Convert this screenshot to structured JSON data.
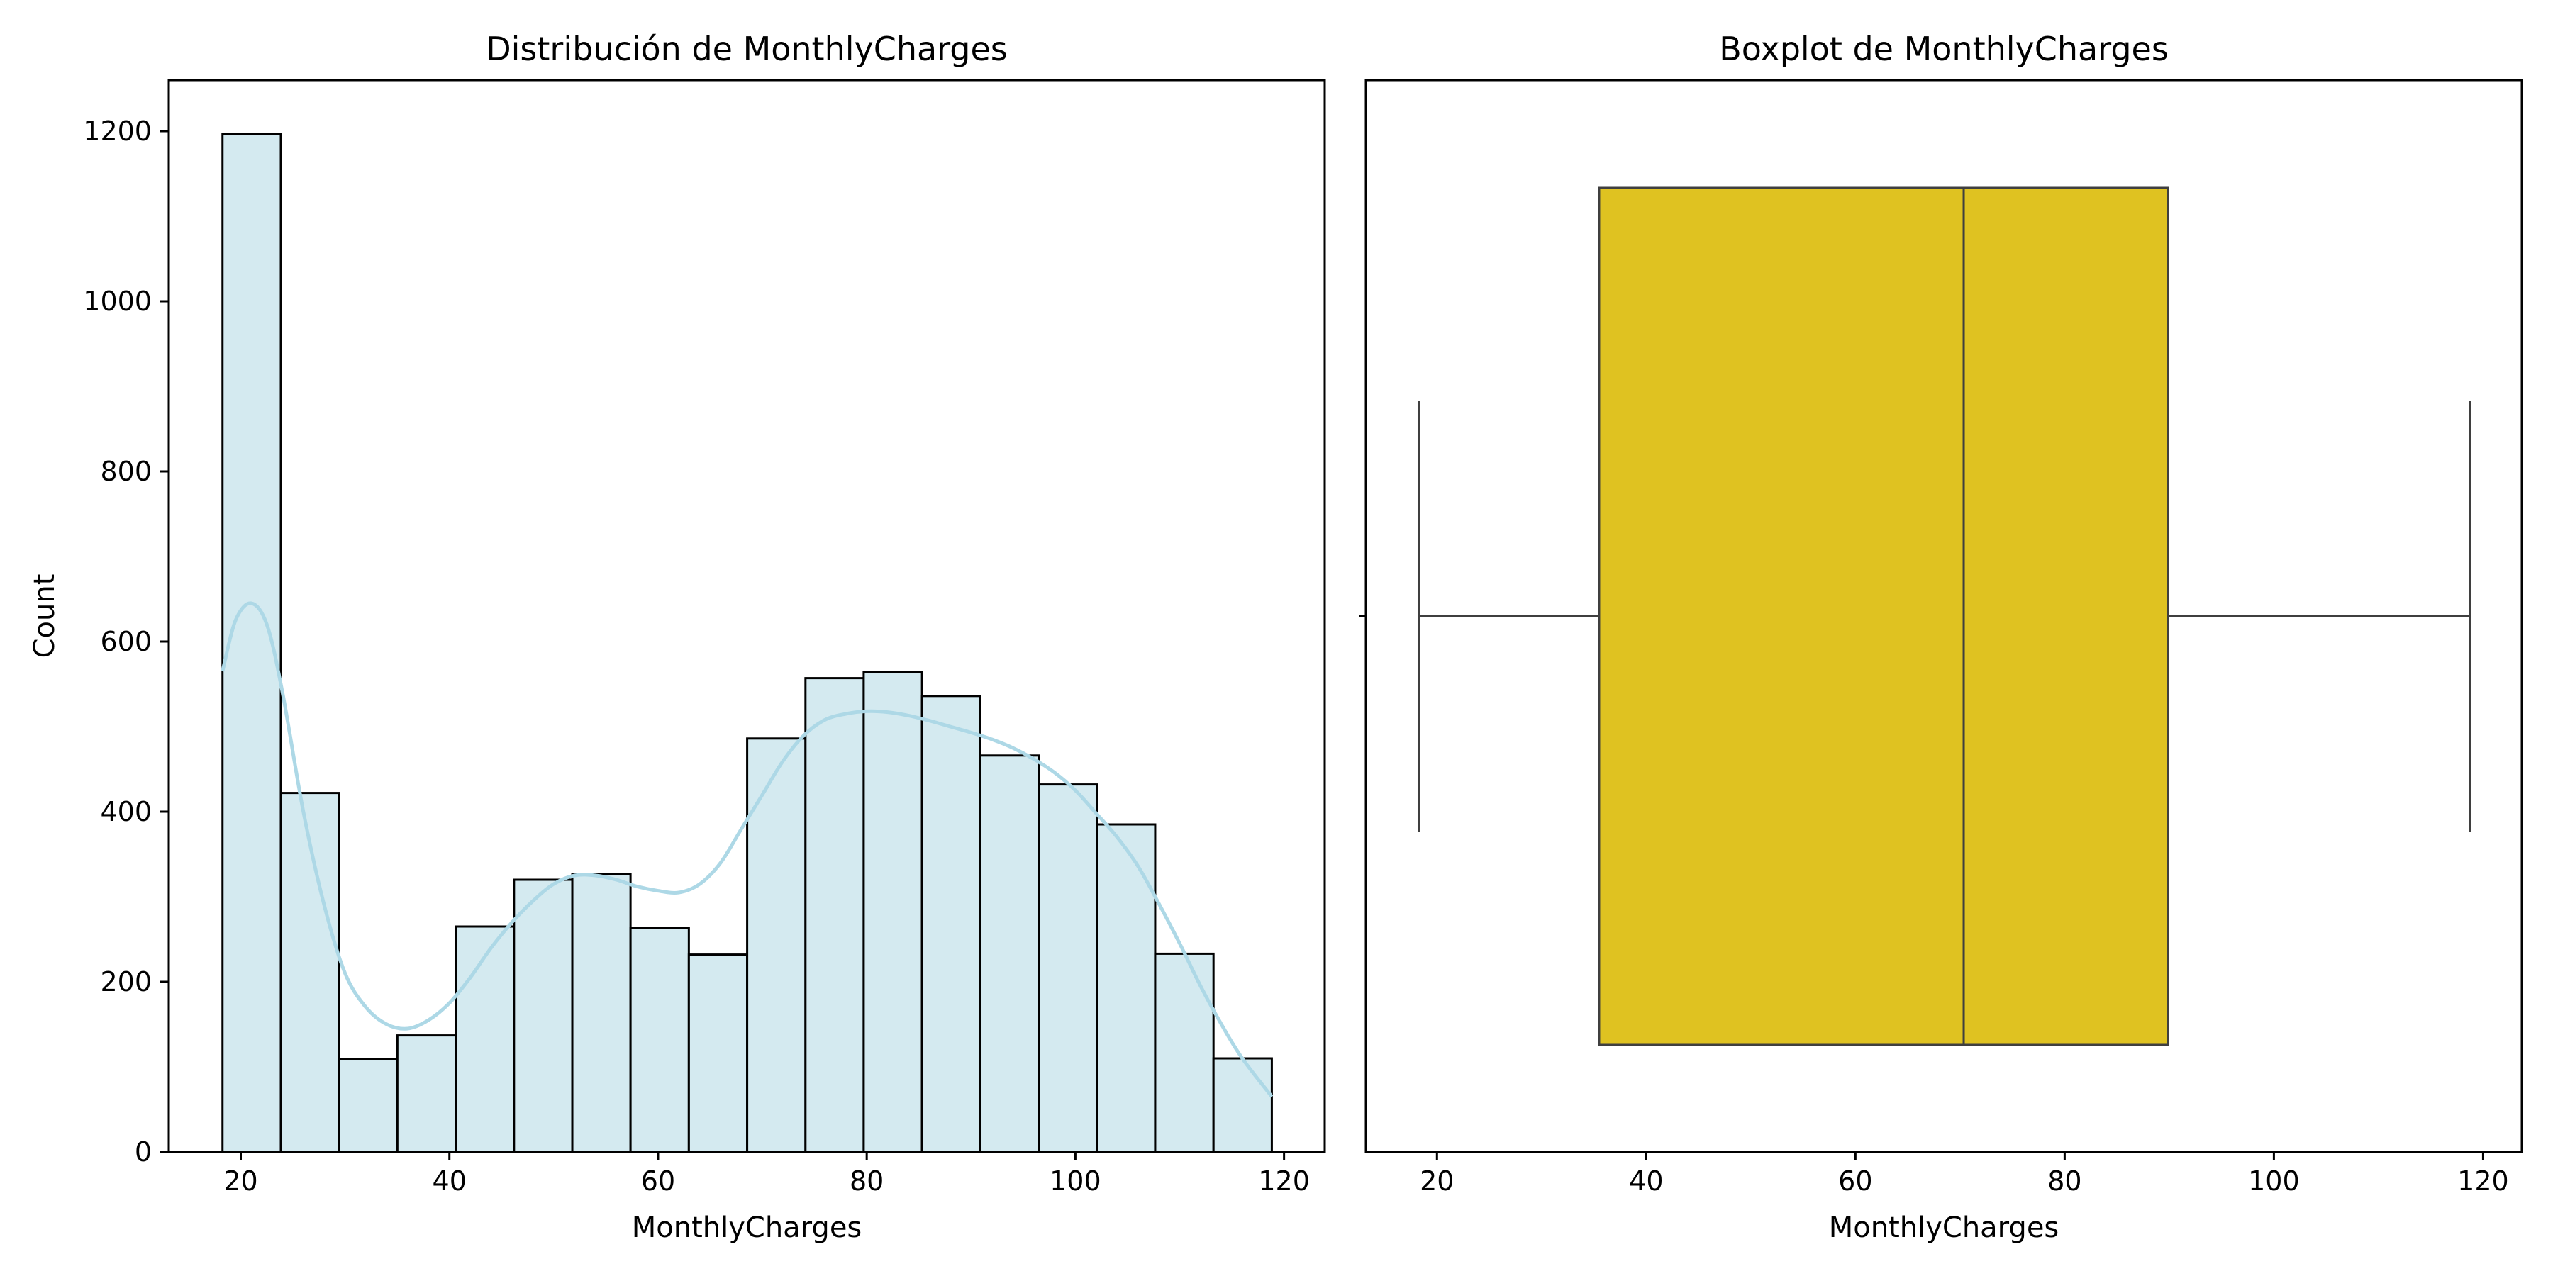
{
  "chart_data": [
    {
      "type": "bar",
      "subtype": "histogram-with-kde",
      "title": "Distribución de MonthlyCharges",
      "xlabel": "MonthlyCharges",
      "ylabel": "Count",
      "xlim": [
        13.1,
        123.9
      ],
      "ylim": [
        0,
        1260
      ],
      "xticks": [
        20,
        40,
        60,
        80,
        100,
        120
      ],
      "yticks": [
        0,
        200,
        400,
        600,
        800,
        1000,
        1200
      ],
      "bins": [
        {
          "x0": 18.25,
          "x1": 23.84,
          "count": 1197
        },
        {
          "x0": 23.84,
          "x1": 29.43,
          "count": 422
        },
        {
          "x0": 29.43,
          "x1": 35.01,
          "count": 109
        },
        {
          "x0": 35.01,
          "x1": 40.6,
          "count": 137
        },
        {
          "x0": 40.6,
          "x1": 46.19,
          "count": 265
        },
        {
          "x0": 46.19,
          "x1": 51.78,
          "count": 320
        },
        {
          "x0": 51.78,
          "x1": 57.36,
          "count": 327
        },
        {
          "x0": 57.36,
          "x1": 62.95,
          "count": 263
        },
        {
          "x0": 62.95,
          "x1": 68.54,
          "count": 232
        },
        {
          "x0": 68.54,
          "x1": 74.13,
          "count": 486
        },
        {
          "x0": 74.13,
          "x1": 79.71,
          "count": 557
        },
        {
          "x0": 79.71,
          "x1": 85.3,
          "count": 564
        },
        {
          "x0": 85.3,
          "x1": 90.89,
          "count": 536
        },
        {
          "x0": 90.89,
          "x1": 96.48,
          "count": 466
        },
        {
          "x0": 96.48,
          "x1": 102.06,
          "count": 432
        },
        {
          "x0": 102.06,
          "x1": 107.65,
          "count": 385
        },
        {
          "x0": 107.65,
          "x1": 113.24,
          "count": 233
        },
        {
          "x0": 113.24,
          "x1": 118.83,
          "count": 110
        }
      ],
      "kde": {
        "x": [
          18.25,
          19.5,
          21.0,
          22.5,
          24.0,
          26.0,
          28.0,
          30.0,
          32.0,
          34.0,
          36.0,
          38.0,
          40.0,
          42.0,
          44.0,
          46.0,
          48.0,
          50.0,
          52.0,
          54.0,
          56.0,
          58.0,
          60.0,
          62.0,
          64.0,
          66.0,
          68.0,
          70.0,
          72.0,
          74.0,
          76.0,
          78.0,
          80.0,
          82.0,
          84.0,
          86.0,
          88.0,
          90.0,
          92.0,
          94.0,
          96.0,
          98.0,
          100.0,
          102.0,
          104.0,
          106.0,
          108.0,
          110.0,
          112.0,
          114.0,
          116.0,
          118.83
        ],
        "y": [
          565,
          625,
          645,
          620,
          540,
          400,
          290,
          210,
          170,
          150,
          145,
          155,
          175,
          205,
          240,
          270,
          295,
          315,
          325,
          325,
          320,
          312,
          307,
          305,
          315,
          340,
          380,
          420,
          460,
          490,
          508,
          515,
          518,
          517,
          513,
          507,
          500,
          493,
          485,
          475,
          462,
          446,
          425,
          398,
          370,
          336,
          292,
          245,
          195,
          150,
          110,
          65
        ]
      },
      "colors": {
        "bar_fill": "#d4eaf0",
        "bar_edge": "#000000",
        "kde_line": "#add8e6"
      }
    },
    {
      "type": "box",
      "title": "Boxplot de MonthlyCharges",
      "xlabel": "MonthlyCharges",
      "xlim": [
        13.2,
        123.7
      ],
      "xticks": [
        20,
        40,
        60,
        80,
        100,
        120
      ],
      "stats": {
        "whisker_low": 18.25,
        "q1": 35.5,
        "median": 70.35,
        "q3": 89.85,
        "whisker_high": 118.75
      },
      "colors": {
        "box_fill": "#dfc221",
        "line": "#3f3f3f"
      }
    }
  ]
}
